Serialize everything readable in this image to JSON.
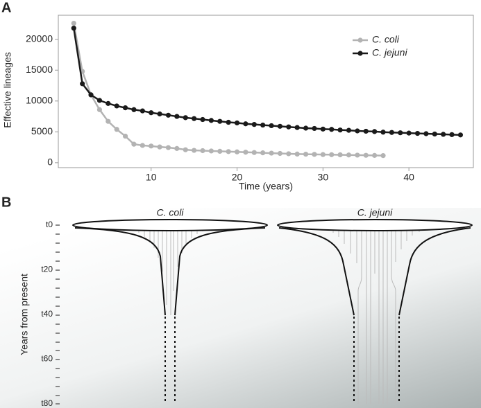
{
  "chart_data": {
    "type": "line",
    "panel_label": "A",
    "xlabel": "Time (years)",
    "ylabel": "Effective lineages",
    "xlim": [
      -0.8,
      47.5
    ],
    "ylim": [
      -800,
      23900
    ],
    "xticks": [
      10,
      20,
      30,
      40
    ],
    "yticks": [
      0,
      5000,
      10000,
      15000,
      20000
    ],
    "legend": "top-right",
    "series": [
      {
        "name": "C. coli",
        "color": "#b3b3b3",
        "x": [
          1,
          2,
          3,
          4,
          5,
          6,
          7,
          8,
          9,
          10,
          11,
          12,
          13,
          14,
          15,
          16,
          17,
          18,
          19,
          20,
          21,
          22,
          23,
          24,
          25,
          26,
          27,
          28,
          29,
          30,
          31,
          32,
          33,
          34,
          35,
          36,
          37
        ],
        "values": [
          22600,
          14800,
          11000,
          8600,
          6700,
          5400,
          4300,
          3000,
          2800,
          2700,
          2550,
          2450,
          2300,
          2100,
          2000,
          1950,
          1900,
          1850,
          1800,
          1750,
          1700,
          1650,
          1600,
          1550,
          1500,
          1450,
          1400,
          1380,
          1350,
          1320,
          1300,
          1280,
          1250,
          1230,
          1200,
          1180,
          1150
        ]
      },
      {
        "name": "C. jejuni",
        "color": "#1a1a1a",
        "x": [
          1,
          2,
          3,
          4,
          5,
          6,
          7,
          8,
          9,
          10,
          11,
          12,
          13,
          14,
          15,
          16,
          17,
          18,
          19,
          20,
          21,
          22,
          23,
          24,
          25,
          26,
          27,
          28,
          29,
          30,
          31,
          32,
          33,
          34,
          35,
          36,
          37,
          38,
          39,
          40,
          41,
          42,
          43,
          44,
          45,
          46
        ],
        "values": [
          21800,
          12800,
          11000,
          10100,
          9600,
          9200,
          8900,
          8600,
          8400,
          8100,
          7900,
          7700,
          7500,
          7300,
          7150,
          7000,
          6850,
          6700,
          6550,
          6450,
          6300,
          6200,
          6100,
          6000,
          5900,
          5800,
          5700,
          5600,
          5550,
          5450,
          5400,
          5300,
          5250,
          5150,
          5100,
          5050,
          4950,
          4900,
          4850,
          4800,
          4750,
          4700,
          4650,
          4600,
          4550,
          4500
        ]
      }
    ]
  },
  "diagram": {
    "panel_label": "B",
    "titles": [
      "C. coli",
      "C. jejuni"
    ],
    "y_label": "Years from present",
    "ticks": [
      "t0",
      "t20",
      "t40",
      "t60",
      "t80"
    ]
  }
}
